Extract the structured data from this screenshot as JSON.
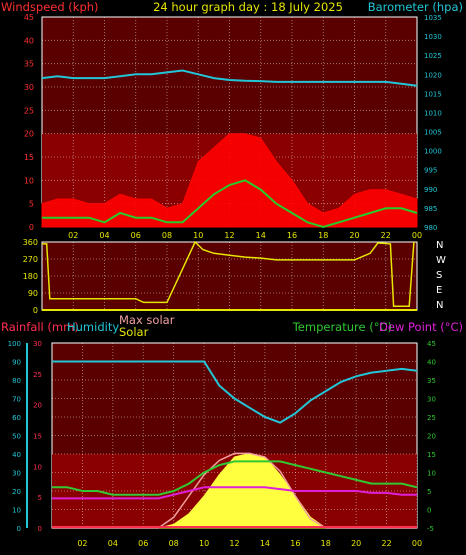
{
  "colors": {
    "wind": "#ff3030",
    "gust": "#ff0000",
    "avg_wind": "#28cc28",
    "barometer": "#22c6d6",
    "direction": "#e6e600",
    "rain": "#ff3050",
    "humidity": "#22c6d6",
    "temperature": "#32c832",
    "dewpoint": "#e020d8",
    "solar": "#ffff40",
    "max_solar": "#f0a0a0",
    "title": "#e6e600",
    "panel_fill": "#5a0000",
    "grid": "#ffffff"
  },
  "chart_data": [
    {
      "type": "line",
      "title": "24 hour graph day : 18 July 2025",
      "ylabel_left": "Windspeed (kph)",
      "ylabel_right": "Barometer (hpa)",
      "ylim_left": [
        0,
        45
      ],
      "ylim_right": [
        980,
        1035
      ],
      "y_ticks_left": [
        "0",
        "5",
        "10",
        "15",
        "20",
        "25",
        "30",
        "35",
        "40",
        "45"
      ],
      "y_ticks_right": [
        "980",
        "985",
        "990",
        "995",
        "1000",
        "1005",
        "1010",
        "1015",
        "1020",
        "1025",
        "1030",
        "1035"
      ],
      "x_hours": [
        0,
        1,
        2,
        3,
        4,
        5,
        6,
        7,
        8,
        9,
        10,
        11,
        12,
        13,
        14,
        15,
        16,
        17,
        18,
        19,
        20,
        21,
        22,
        23,
        24
      ],
      "x_tick_labels": [
        "02",
        "04",
        "06",
        "08",
        "10",
        "12",
        "14",
        "16",
        "18",
        "20",
        "22",
        "00"
      ],
      "series": [
        {
          "key": "gust",
          "values": [
            5,
            6,
            6,
            5,
            5,
            7,
            6,
            6,
            4,
            5,
            14,
            17,
            20,
            20,
            19,
            14,
            10,
            5,
            3,
            4,
            7,
            8,
            8,
            7,
            6
          ]
        },
        {
          "key": "wind",
          "values": [
            2,
            2,
            2,
            2,
            1,
            3,
            2,
            2,
            1,
            1,
            4,
            7,
            9,
            10,
            8,
            5,
            3,
            1,
            0,
            1,
            2,
            3,
            4,
            4,
            3
          ]
        },
        {
          "key": "barometer",
          "values": [
            1019,
            1019.5,
            1019,
            1019,
            1019,
            1019.5,
            1020,
            1020,
            1020.5,
            1021,
            1020,
            1019,
            1018.5,
            1018.3,
            1018.2,
            1018,
            1018,
            1018,
            1018,
            1018,
            1018,
            1018,
            1018,
            1017.5,
            1017
          ]
        }
      ]
    },
    {
      "type": "scatter",
      "ylabel_right": [
        "N",
        "W",
        "S",
        "E",
        "N"
      ],
      "ylim": [
        0,
        360
      ],
      "y_ticks": [
        "0",
        "90",
        "180",
        "270",
        "360"
      ],
      "x_tick_labels": [
        "02",
        "04",
        "06",
        "08",
        "10",
        "12",
        "14",
        "16",
        "18",
        "20",
        "22",
        "00"
      ],
      "series": [
        {
          "key": "direction",
          "points": [
            [
              0,
              350
            ],
            [
              0.3,
              350
            ],
            [
              0.5,
              60
            ],
            [
              2,
              60
            ],
            [
              4,
              60
            ],
            [
              6,
              60
            ],
            [
              6.5,
              40
            ],
            [
              8,
              40
            ],
            [
              9.8,
              360
            ],
            [
              10.3,
              320
            ],
            [
              11,
              300
            ],
            [
              12,
              290
            ],
            [
              13,
              280
            ],
            [
              14,
              275
            ],
            [
              15,
              265
            ],
            [
              16,
              265
            ],
            [
              17,
              265
            ],
            [
              18,
              265
            ],
            [
              19,
              265
            ],
            [
              20,
              265
            ],
            [
              21,
              300
            ],
            [
              21.5,
              355
            ],
            [
              22.3,
              350
            ],
            [
              22.5,
              20
            ],
            [
              23.5,
              20
            ],
            [
              23.8,
              360
            ]
          ]
        }
      ]
    },
    {
      "type": "line",
      "ylabel_left": "Rainfall (mm)",
      "ylabel_left2": "Humidity",
      "legend_left": [
        "Max solar",
        "Solar"
      ],
      "ylabel_right": "Temperature (°C)",
      "ylabel_right2": "Dew Point (°C)",
      "ylim_humidity": [
        0,
        100
      ],
      "ylim_rain": [
        0,
        30
      ],
      "ylim_temp": [
        -5,
        45
      ],
      "y_ticks_humidity": [
        "0",
        "10",
        "20",
        "30",
        "40",
        "50",
        "60",
        "70",
        "80",
        "90",
        "100"
      ],
      "y_ticks_rain": [
        "0",
        "5",
        "10",
        "15",
        "20",
        "25",
        "30"
      ],
      "y_ticks_temp": [
        "-5",
        "0",
        "5",
        "10",
        "15",
        "20",
        "25",
        "30",
        "35",
        "40",
        "45"
      ],
      "x_hours": [
        0,
        1,
        2,
        3,
        4,
        5,
        6,
        7,
        8,
        9,
        10,
        11,
        12,
        13,
        14,
        15,
        16,
        17,
        18,
        19,
        20,
        21,
        22,
        23,
        24
      ],
      "x_tick_labels": [
        "02",
        "04",
        "06",
        "08",
        "10",
        "12",
        "14",
        "16",
        "18",
        "20",
        "22",
        "00"
      ],
      "series": [
        {
          "key": "humidity",
          "values": [
            90,
            90,
            90,
            90,
            90,
            90,
            90,
            90,
            90,
            90,
            90,
            77,
            70,
            65,
            60,
            57,
            62,
            69,
            74,
            79,
            82,
            84,
            85,
            86,
            85
          ]
        },
        {
          "key": "temperature",
          "values": [
            6,
            6,
            5,
            5,
            4,
            4,
            4,
            4,
            5,
            7,
            10,
            12,
            13,
            13,
            13,
            13,
            12,
            11,
            10,
            9,
            8,
            7,
            7,
            7,
            6
          ]
        },
        {
          "key": "dewpoint",
          "values": [
            3,
            3,
            3,
            3,
            3,
            3,
            3,
            3,
            4,
            5,
            6,
            6,
            6,
            6,
            6,
            5.5,
            5,
            5,
            5,
            5,
            5,
            4.5,
            4.5,
            4,
            4
          ]
        },
        {
          "key": "solar",
          "values": [
            0,
            0,
            0,
            0,
            0,
            0,
            0,
            0,
            2,
            8,
            18,
            30,
            40,
            42,
            40,
            30,
            18,
            6,
            0,
            0,
            0,
            0,
            0,
            0,
            0
          ]
        },
        {
          "key": "max_solar",
          "values": [
            0,
            0,
            0,
            0,
            0,
            0,
            0,
            0,
            6,
            18,
            30,
            38,
            42,
            42,
            40,
            32,
            18,
            5,
            0,
            0,
            0,
            0,
            0,
            0,
            0
          ]
        }
      ]
    }
  ]
}
